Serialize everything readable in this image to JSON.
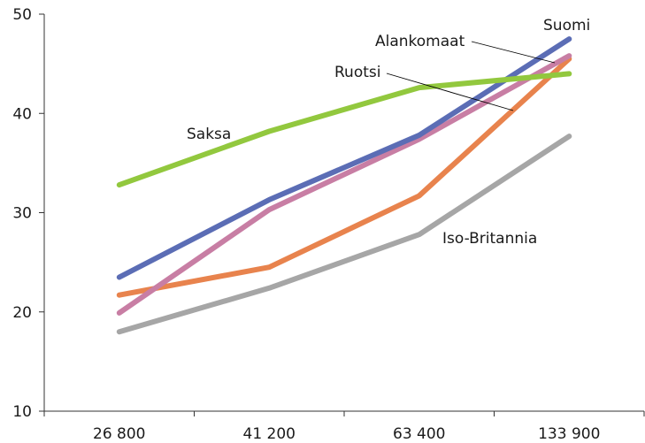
{
  "chart_data": {
    "type": "line",
    "title": "",
    "xlabel": "",
    "ylabel": "",
    "categories": [
      "26 800",
      "41 200",
      "63 400",
      "133 900"
    ],
    "ylim": [
      10,
      50
    ],
    "yticks": [
      10,
      20,
      30,
      40,
      50
    ],
    "grid": false,
    "legend": "none (series labelled directly on chart)",
    "series": [
      {
        "name": "Saksa",
        "color": "#92c83e",
        "values": [
          32.8,
          38.2,
          42.6,
          44.0
        ]
      },
      {
        "name": "Suomi",
        "color": "#5b6db5",
        "values": [
          23.5,
          31.3,
          37.8,
          47.5
        ]
      },
      {
        "name": "Alankomaat",
        "color": "#c87ea4",
        "values": [
          19.9,
          30.3,
          37.4,
          45.8
        ]
      },
      {
        "name": "Ruotsi",
        "color": "#e8834d",
        "values": [
          21.7,
          24.5,
          31.7,
          45.5
        ]
      },
      {
        "name": "Iso-Britannia",
        "color": "#a6a6a6",
        "values": [
          18.0,
          22.4,
          27.8,
          37.7
        ]
      }
    ]
  }
}
